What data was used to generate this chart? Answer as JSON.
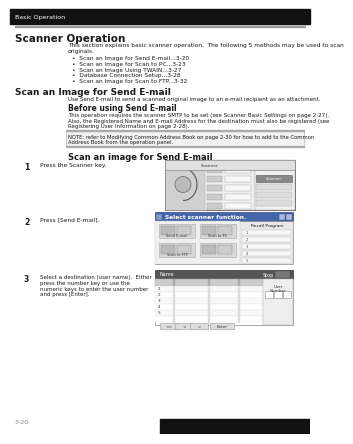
{
  "page_bg": "#ffffff",
  "header_bg": "#000000",
  "header_text": "Basic Operation",
  "title": "Scanner Operation",
  "intro_text": "This section explains basic scanner operation.  The following 5 methods may be used to scan\noriginals.",
  "bullets": [
    "Scan an Image for Send E-mail...3-20",
    "Scan an Image for Scan to PC...3-23",
    "Scan an Image Using TWAIN...3-27",
    "Database Connection Setup...3-28",
    "Scan an Image for Scan to FTP...3-32"
  ],
  "section1_title": "Scan an Image for Send E-mail",
  "section1_text": "Use Send E-mail to send a scanned original image to an e-mail recipient as an attachment.",
  "subsection_title": "Before using Send E-mail",
  "subsection_text": "This operation requires the scanner SMTP to be set (see Scanner Basic Settings on page 2-27).\nAlso, the Registered Name and E-mail Address for the destination must also be registered (see\nRegistering User Information on page 2-28).",
  "note_label": "NOTE:",
  "note_text": "NOTE: refer to Modifying Common Address Book on page 2-30 for how to add to the Common\nAddress Book from the operation panel.",
  "section2_title": "Scan an image for Send E-mail",
  "step1_text": "Press the Scanner key.",
  "step2_text": "Press [Send E-mail].",
  "step2_dialog_title": "Select scanner function.",
  "step3_text": "Select a destination (user name).  Either\npress the number key or use the\nnumeric keys to enter the user number\nand press [Enter].",
  "page_num": "3-20",
  "text_color": "#1a1a1a",
  "gray_line": "#aaaaaa",
  "mid_gray": "#888888",
  "note_bg": "#f2f2f2",
  "bullet_char": "•"
}
